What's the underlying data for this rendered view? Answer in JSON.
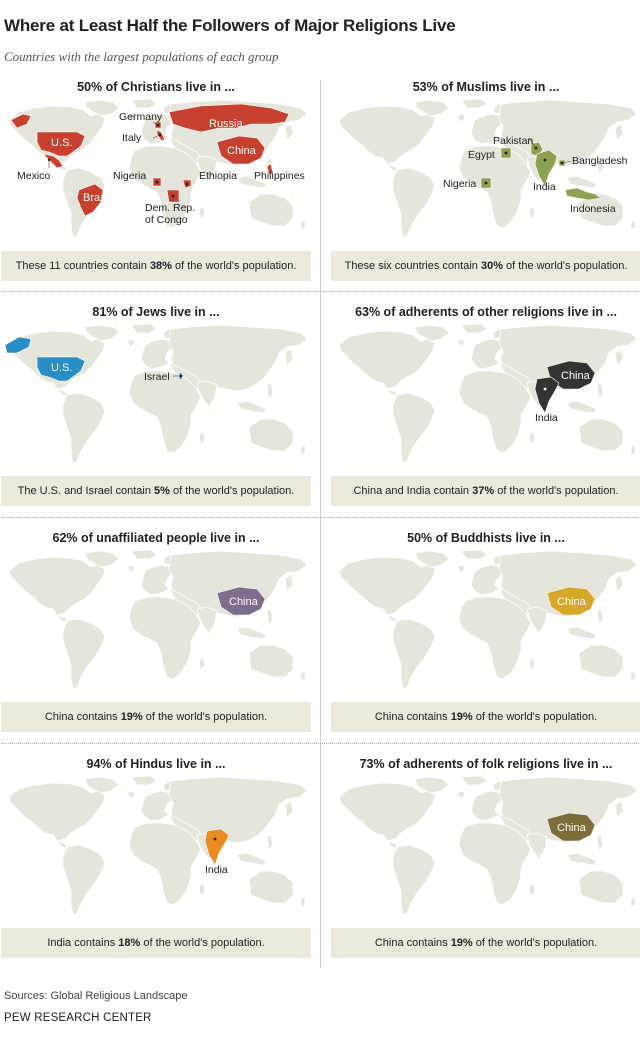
{
  "title": "Where at Least Half the Followers of Major Religions Live",
  "subtitle": "Countries with the largest populations of each group",
  "colors": {
    "christian": "#c8402f",
    "muslim": "#8fa050",
    "jewish": "#2a8ec6",
    "other": "#333333",
    "unaffiliated": "#7d6e8e",
    "buddhist": "#d5a82a",
    "hindu": "#e88c1f",
    "folk": "#7d6d3a",
    "land": "#e5e5dc",
    "note_bg": "#ece9dd"
  },
  "panels": [
    {
      "id": "christians",
      "heading": "50% of Christians live in ...",
      "note_pre": "These 11 countries contain ",
      "note_bold": "38%",
      "note_post": " of the world's population.",
      "labels": {
        "us": "U.S.",
        "russia": "Russia",
        "china": "China",
        "brazil": "Brazil",
        "germany": "Germany",
        "italy": "Italy",
        "mexico": "Mexico",
        "nigeria": "Nigeria",
        "ethiopia": "Ethiopia",
        "philippines": "Philippines",
        "drc_1": "Dem. Rep.",
        "drc_2": "of Congo"
      }
    },
    {
      "id": "muslims",
      "heading": "53% of Muslims live in ...",
      "note_pre": "These six countries contain ",
      "note_bold": "30%",
      "note_post": " of the world's population.",
      "labels": {
        "pakistan": "Pakistan",
        "egypt": "Egypt",
        "bangladesh": "Bangladesh",
        "nigeria": "Nigeria",
        "india": "India",
        "indonesia": "Indonesia"
      }
    },
    {
      "id": "jews",
      "heading": "81% of Jews live in ...",
      "note_pre": "The U.S. and Israel contain ",
      "note_bold": "5%",
      "note_post": " of the world's population.",
      "labels": {
        "us": "U.S.",
        "israel": "Israel"
      }
    },
    {
      "id": "other",
      "heading": "63% of adherents of other religions live in ...",
      "note_pre": "China and India contain ",
      "note_bold": "37%",
      "note_post": " of the world's population.",
      "labels": {
        "china": "China",
        "india": "India"
      }
    },
    {
      "id": "unaffiliated",
      "heading": "62% of unaffiliated people live in ...",
      "note_pre": "China contains ",
      "note_bold": "19%",
      "note_post": " of the world's population.",
      "labels": {
        "china": "China"
      }
    },
    {
      "id": "buddhists",
      "heading": "50% of Buddhists live in ...",
      "note_pre": "China contains ",
      "note_bold": "19%",
      "note_post": " of the world's population.",
      "labels": {
        "china": "China"
      }
    },
    {
      "id": "hindus",
      "heading": "94% of Hindus live in ...",
      "note_pre": "India contains ",
      "note_bold": "18%",
      "note_post": " of the world's population.",
      "labels": {
        "india": "India"
      }
    },
    {
      "id": "folk",
      "heading": "73% of adherents of folk religions live in ...",
      "note_pre": "China contains ",
      "note_bold": "19%",
      "note_post": " of the world's population.",
      "labels": {
        "china": "China"
      }
    }
  ],
  "source": "Sources: Global Religious Landscape",
  "org": "PEW RESEARCH CENTER"
}
